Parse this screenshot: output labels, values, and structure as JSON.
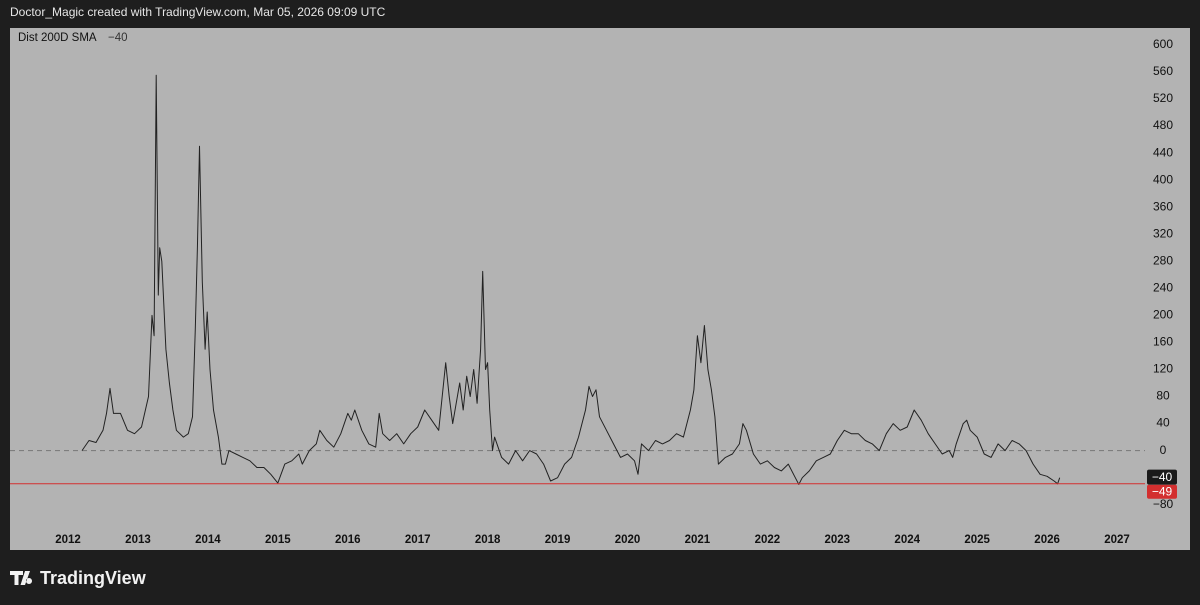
{
  "header": {
    "text": "Doctor_Magic created with TradingView.com, Mar 05, 2026 09:09 UTC"
  },
  "footer": {
    "brand": "TradingView"
  },
  "chart_data": {
    "type": "line",
    "indicator_value": "−40",
    "x": [
      2012.2,
      2012.3,
      2012.4,
      2012.5,
      2012.55,
      2012.6,
      2012.65,
      2012.75,
      2012.85,
      2012.95,
      2013.05,
      2013.15,
      2013.2,
      2013.23,
      2013.26,
      2013.29,
      2013.31,
      2013.34,
      2013.4,
      2013.45,
      2013.5,
      2013.55,
      2013.65,
      2013.72,
      2013.78,
      2013.82,
      2013.85,
      2013.88,
      2013.92,
      2013.96,
      2013.99,
      2014.03,
      2014.08,
      2014.15,
      2014.2,
      2014.25,
      2014.3,
      2014.4,
      2014.5,
      2014.6,
      2014.7,
      2014.8,
      2014.9,
      2015.0,
      2015.1,
      2015.2,
      2015.3,
      2015.35,
      2015.45,
      2015.55,
      2015.6,
      2015.7,
      2015.8,
      2015.9,
      2015.95,
      2016.0,
      2016.05,
      2016.1,
      2016.2,
      2016.3,
      2016.4,
      2016.45,
      2016.5,
      2016.6,
      2016.7,
      2016.8,
      2016.9,
      2017.0,
      2017.1,
      2017.2,
      2017.3,
      2017.35,
      2017.4,
      2017.45,
      2017.5,
      2017.6,
      2017.65,
      2017.7,
      2017.75,
      2017.8,
      2017.85,
      2017.9,
      2017.93,
      2017.97,
      2018.0,
      2018.03,
      2018.07,
      2018.1,
      2018.2,
      2018.3,
      2018.4,
      2018.5,
      2018.6,
      2018.7,
      2018.8,
      2018.9,
      2019.0,
      2019.1,
      2019.2,
      2019.3,
      2019.4,
      2019.45,
      2019.5,
      2019.55,
      2019.6,
      2019.7,
      2019.8,
      2019.9,
      2020.0,
      2020.1,
      2020.15,
      2020.2,
      2020.3,
      2020.4,
      2020.5,
      2020.6,
      2020.7,
      2020.8,
      2020.9,
      2020.95,
      2021.0,
      2021.05,
      2021.1,
      2021.15,
      2021.2,
      2021.25,
      2021.3,
      2021.4,
      2021.5,
      2021.6,
      2021.65,
      2021.7,
      2021.8,
      2021.9,
      2022.0,
      2022.1,
      2022.2,
      2022.3,
      2022.4,
      2022.45,
      2022.5,
      2022.6,
      2022.7,
      2022.8,
      2022.9,
      2023.0,
      2023.1,
      2023.2,
      2023.3,
      2023.4,
      2023.5,
      2023.6,
      2023.7,
      2023.8,
      2023.9,
      2024.0,
      2024.1,
      2024.2,
      2024.3,
      2024.4,
      2024.5,
      2024.6,
      2024.65,
      2024.7,
      2024.8,
      2024.85,
      2024.9,
      2025.0,
      2025.1,
      2025.2,
      2025.3,
      2025.4,
      2025.5,
      2025.6,
      2025.7,
      2025.8,
      2025.9,
      2026.0,
      2026.1,
      2026.15,
      2026.18
    ],
    "series": [
      {
        "name": "Dist 200D SMA",
        "color": "#222222",
        "values": [
          0,
          15,
          12,
          30,
          55,
          92,
          55,
          55,
          30,
          25,
          35,
          80,
          200,
          170,
          555,
          230,
          300,
          280,
          150,
          100,
          60,
          30,
          20,
          25,
          50,
          180,
          300,
          450,
          250,
          150,
          205,
          120,
          60,
          20,
          -20,
          -20,
          0,
          -5,
          -10,
          -15,
          -25,
          -25,
          -35,
          -48,
          -20,
          -15,
          -5,
          -20,
          0,
          10,
          30,
          15,
          5,
          25,
          40,
          55,
          45,
          60,
          30,
          10,
          5,
          55,
          25,
          15,
          25,
          10,
          25,
          35,
          60,
          45,
          30,
          80,
          130,
          80,
          40,
          100,
          60,
          110,
          80,
          120,
          70,
          150,
          265,
          120,
          130,
          60,
          0,
          20,
          -10,
          -20,
          0,
          -15,
          0,
          -5,
          -20,
          -45,
          -40,
          -20,
          -10,
          20,
          60,
          95,
          80,
          90,
          50,
          30,
          10,
          -10,
          -5,
          -15,
          -35,
          10,
          0,
          15,
          10,
          15,
          25,
          20,
          60,
          90,
          170,
          130,
          185,
          120,
          90,
          50,
          -20,
          -10,
          -5,
          10,
          40,
          30,
          -5,
          -20,
          -15,
          -25,
          -30,
          -20,
          -40,
          -50,
          -40,
          -30,
          -15,
          -10,
          -5,
          15,
          30,
          25,
          25,
          15,
          10,
          0,
          25,
          40,
          30,
          35,
          60,
          45,
          25,
          10,
          -5,
          0,
          -10,
          10,
          40,
          45,
          30,
          20,
          -5,
          -10,
          10,
          0,
          15,
          10,
          0,
          -20,
          -35,
          -38,
          -45,
          -49,
          -40
        ]
      }
    ],
    "last_value_label": "−40",
    "hline": {
      "value": -49,
      "label": "−49",
      "color": "#d32f2f"
    },
    "zero_line": {
      "value": 0,
      "style": "dashed"
    },
    "xlim": [
      2011.17,
      2027.4
    ],
    "xticks": [
      2012,
      2013,
      2014,
      2015,
      2016,
      2017,
      2018,
      2019,
      2020,
      2021,
      2022,
      2023,
      2024,
      2025,
      2026,
      2027
    ],
    "ylim": [
      -110,
      625
    ],
    "yticks": [
      600,
      560,
      520,
      480,
      440,
      400,
      360,
      320,
      280,
      240,
      200,
      160,
      120,
      80,
      40,
      0,
      {
        "value": -40,
        "label": "−40"
      },
      {
        "value": -80,
        "label": "−80"
      }
    ],
    "grid": false
  }
}
